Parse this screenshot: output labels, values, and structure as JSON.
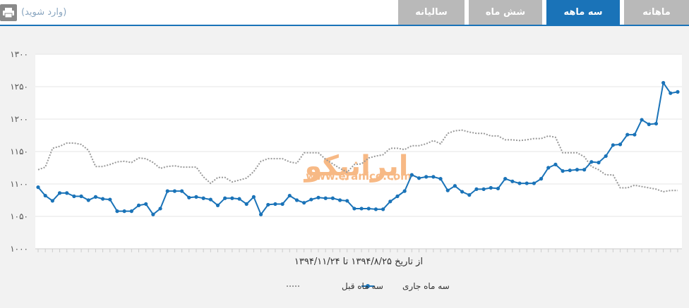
{
  "header": {
    "print_icon": "printer-icon",
    "login_text": "(وارد شوید)",
    "tabs": [
      {
        "label": "ماهانه",
        "active": false
      },
      {
        "label": "سه ماهه",
        "active": true
      },
      {
        "label": "شش ماه",
        "active": false
      },
      {
        "label": "سالیانه",
        "active": false
      }
    ]
  },
  "watermark": {
    "logo_text": "ایرانیکو",
    "url": "www.eranico.com"
  },
  "colors": {
    "current": "#1a73b8",
    "previous": "#999999",
    "accent": "#1a73b8",
    "watermark": "#f5a25d"
  },
  "chart_data": {
    "type": "line",
    "xlabel": "از تاریخ ۱۳۹۴/۸/۲۵ تا ۱۳۹۴/۱۱/۲۴",
    "ylabel": "",
    "ylim": [
      1000,
      1300
    ],
    "yticks": [
      1000,
      1050,
      1100,
      1150,
      1200,
      1250,
      1300
    ],
    "ytick_labels": [
      "۱۰۰۰",
      "۱۰۵۰",
      "۱۱۰۰",
      "۱۱۵۰",
      "۱۲۰۰",
      "۱۲۵۰",
      "۱۳۰۰"
    ],
    "legend_position": "bottom-center",
    "grid": true,
    "series": [
      {
        "name": "سه ماه جاری",
        "style": "solid-markers",
        "values": [
          1095,
          1082,
          1074,
          1086,
          1086,
          1081,
          1081,
          1075,
          1080,
          1077,
          1076,
          1058,
          1058,
          1058,
          1067,
          1069,
          1053,
          1062,
          1089,
          1089,
          1089,
          1079,
          1080,
          1078,
          1076,
          1067,
          1078,
          1078,
          1077,
          1069,
          1080,
          1053,
          1068,
          1069,
          1069,
          1082,
          1075,
          1071,
          1076,
          1079,
          1078,
          1078,
          1075,
          1074,
          1062,
          1062,
          1062,
          1061,
          1061,
          1073,
          1081,
          1089,
          1114,
          1109,
          1111,
          1111,
          1108,
          1090,
          1097,
          1088,
          1083,
          1092,
          1092,
          1094,
          1093,
          1108,
          1104,
          1101,
          1101,
          1101,
          1108,
          1125,
          1130,
          1120,
          1121,
          1122,
          1122,
          1134,
          1133,
          1143,
          1160,
          1161,
          1176,
          1176,
          1199,
          1192,
          1193,
          1256,
          1240,
          1242
        ]
      },
      {
        "name": "سه ماه قبل",
        "style": "dotted",
        "values": [
          1122,
          1126,
          1155,
          1158,
          1163,
          1163,
          1161,
          1152,
          1127,
          1127,
          1130,
          1134,
          1135,
          1133,
          1140,
          1139,
          1133,
          1124,
          1127,
          1128,
          1126,
          1126,
          1126,
          1111,
          1101,
          1110,
          1110,
          1103,
          1106,
          1109,
          1119,
          1135,
          1139,
          1139,
          1139,
          1134,
          1132,
          1148,
          1148,
          1148,
          1138,
          1131,
          1124,
          1118,
          1130,
          1131,
          1140,
          1143,
          1145,
          1155,
          1155,
          1153,
          1159,
          1159,
          1162,
          1167,
          1162,
          1178,
          1182,
          1183,
          1180,
          1178,
          1178,
          1174,
          1174,
          1168,
          1168,
          1167,
          1168,
          1170,
          1170,
          1174,
          1172,
          1148,
          1148,
          1148,
          1142,
          1127,
          1122,
          1114,
          1114,
          1094,
          1094,
          1098,
          1096,
          1094,
          1092,
          1088,
          1090,
          1090
        ]
      }
    ]
  }
}
